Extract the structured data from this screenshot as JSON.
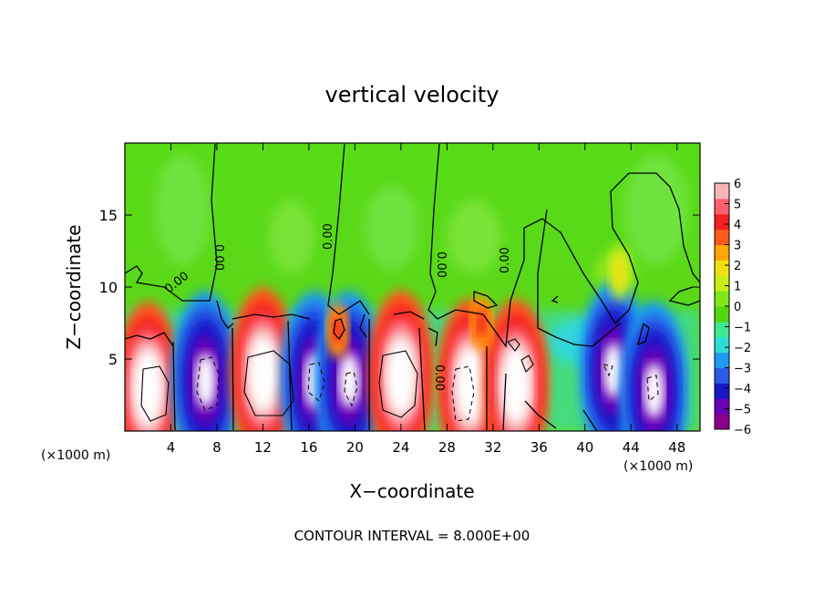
{
  "chart_data": {
    "type": "heatmap",
    "title": "vertical velocity",
    "xlabel": "X−coordinate",
    "ylabel": "Z−coordinate",
    "x_unit": "(×1000 m)",
    "x_unit_right": "(×1000 m)",
    "xlim": [
      0,
      50
    ],
    "ylim": [
      0,
      20
    ],
    "x_ticks": [
      4,
      8,
      12,
      16,
      20,
      24,
      28,
      32,
      36,
      40,
      44,
      48
    ],
    "x_tick_labels": [
      "4",
      "8",
      "12",
      "16",
      "20",
      "24",
      "28",
      "32",
      "36",
      "40",
      "44",
      "48"
    ],
    "y_ticks": [
      5,
      10,
      15
    ],
    "y_tick_labels": [
      "5",
      "10",
      "15"
    ],
    "colorbar": {
      "range": [
        -6,
        6
      ],
      "labels": [
        "6",
        "5",
        "4",
        "3",
        "2",
        "1",
        "0",
        "−1",
        "−2",
        "−3",
        "−4",
        "−5",
        "−6"
      ],
      "colors": [
        "#8b008b",
        "#6a00b8",
        "#1818c8",
        "#2a5ae8",
        "#1e9bf0",
        "#2fdcd2",
        "#40e890",
        "#52d70f",
        "#80e818",
        "#c7ee1a",
        "#f0e010",
        "#ffa600",
        "#ff5a1a",
        "#f22020",
        "#ff6070",
        "#f7b6b6"
      ]
    },
    "contour_labels": [
      "0.00",
      "0.00",
      "0.00",
      "0.00",
      "0.00",
      "0.00",
      "0.00",
      "0.00"
    ],
    "cells": [
      {
        "x": 2,
        "z": 3,
        "w": 7
      },
      {
        "x": 7,
        "z": 3.5,
        "w": -6
      },
      {
        "x": 12,
        "z": 4,
        "w": 7
      },
      {
        "x": 16.5,
        "z": 3.5,
        "w": -6
      },
      {
        "x": 19.5,
        "z": 3.5,
        "w": -6
      },
      {
        "x": 24,
        "z": 3.8,
        "w": 7
      },
      {
        "x": 30,
        "z": 3.2,
        "w": 6
      },
      {
        "x": 34,
        "z": 3.2,
        "w": 6
      },
      {
        "x": 42.5,
        "z": 4.2,
        "w": -6
      },
      {
        "x": 46,
        "z": 2.8,
        "w": -6
      },
      {
        "x": 31,
        "z": 7.5,
        "w": 4
      },
      {
        "x": 18.5,
        "z": 7,
        "w": 4
      },
      {
        "x": 43,
        "z": 11,
        "w": 2
      }
    ],
    "grid": false,
    "legend": "right"
  },
  "footer": {
    "contour_interval": "CONTOUR INTERVAL = 8.000E+00"
  }
}
